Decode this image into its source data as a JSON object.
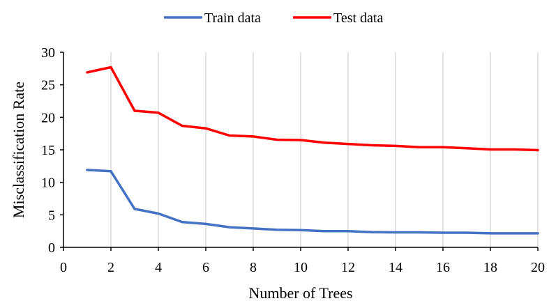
{
  "chart_data": {
    "type": "line",
    "title": "",
    "xlabel": "Number of Trees",
    "ylabel": "Misclassification Rate",
    "xlim": [
      0,
      20
    ],
    "ylim": [
      0,
      30
    ],
    "xticks": [
      0,
      2,
      4,
      6,
      8,
      10,
      12,
      14,
      16,
      18,
      20
    ],
    "yticks": [
      0,
      5,
      10,
      15,
      20,
      25,
      30
    ],
    "grid": "vertical",
    "legend_position": "top",
    "series": [
      {
        "name": "Train data",
        "color": "#4472c4",
        "x": [
          1,
          2,
          3,
          4,
          5,
          6,
          7,
          8,
          9,
          10,
          11,
          12,
          13,
          14,
          15,
          16,
          17,
          18,
          19,
          20
        ],
        "y": [
          11.9,
          11.7,
          5.9,
          5.2,
          3.9,
          3.6,
          3.1,
          2.9,
          2.7,
          2.65,
          2.5,
          2.5,
          2.35,
          2.3,
          2.3,
          2.25,
          2.25,
          2.15,
          2.15,
          2.15
        ]
      },
      {
        "name": "Test data",
        "color": "#ff0000",
        "x": [
          1,
          2,
          3,
          4,
          5,
          6,
          7,
          8,
          9,
          10,
          11,
          12,
          13,
          14,
          15,
          16,
          17,
          18,
          19,
          20
        ],
        "y": [
          26.9,
          27.7,
          21.0,
          20.7,
          18.7,
          18.3,
          17.2,
          17.05,
          16.55,
          16.5,
          16.1,
          15.9,
          15.7,
          15.6,
          15.4,
          15.4,
          15.25,
          15.05,
          15.05,
          14.95
        ]
      }
    ]
  }
}
